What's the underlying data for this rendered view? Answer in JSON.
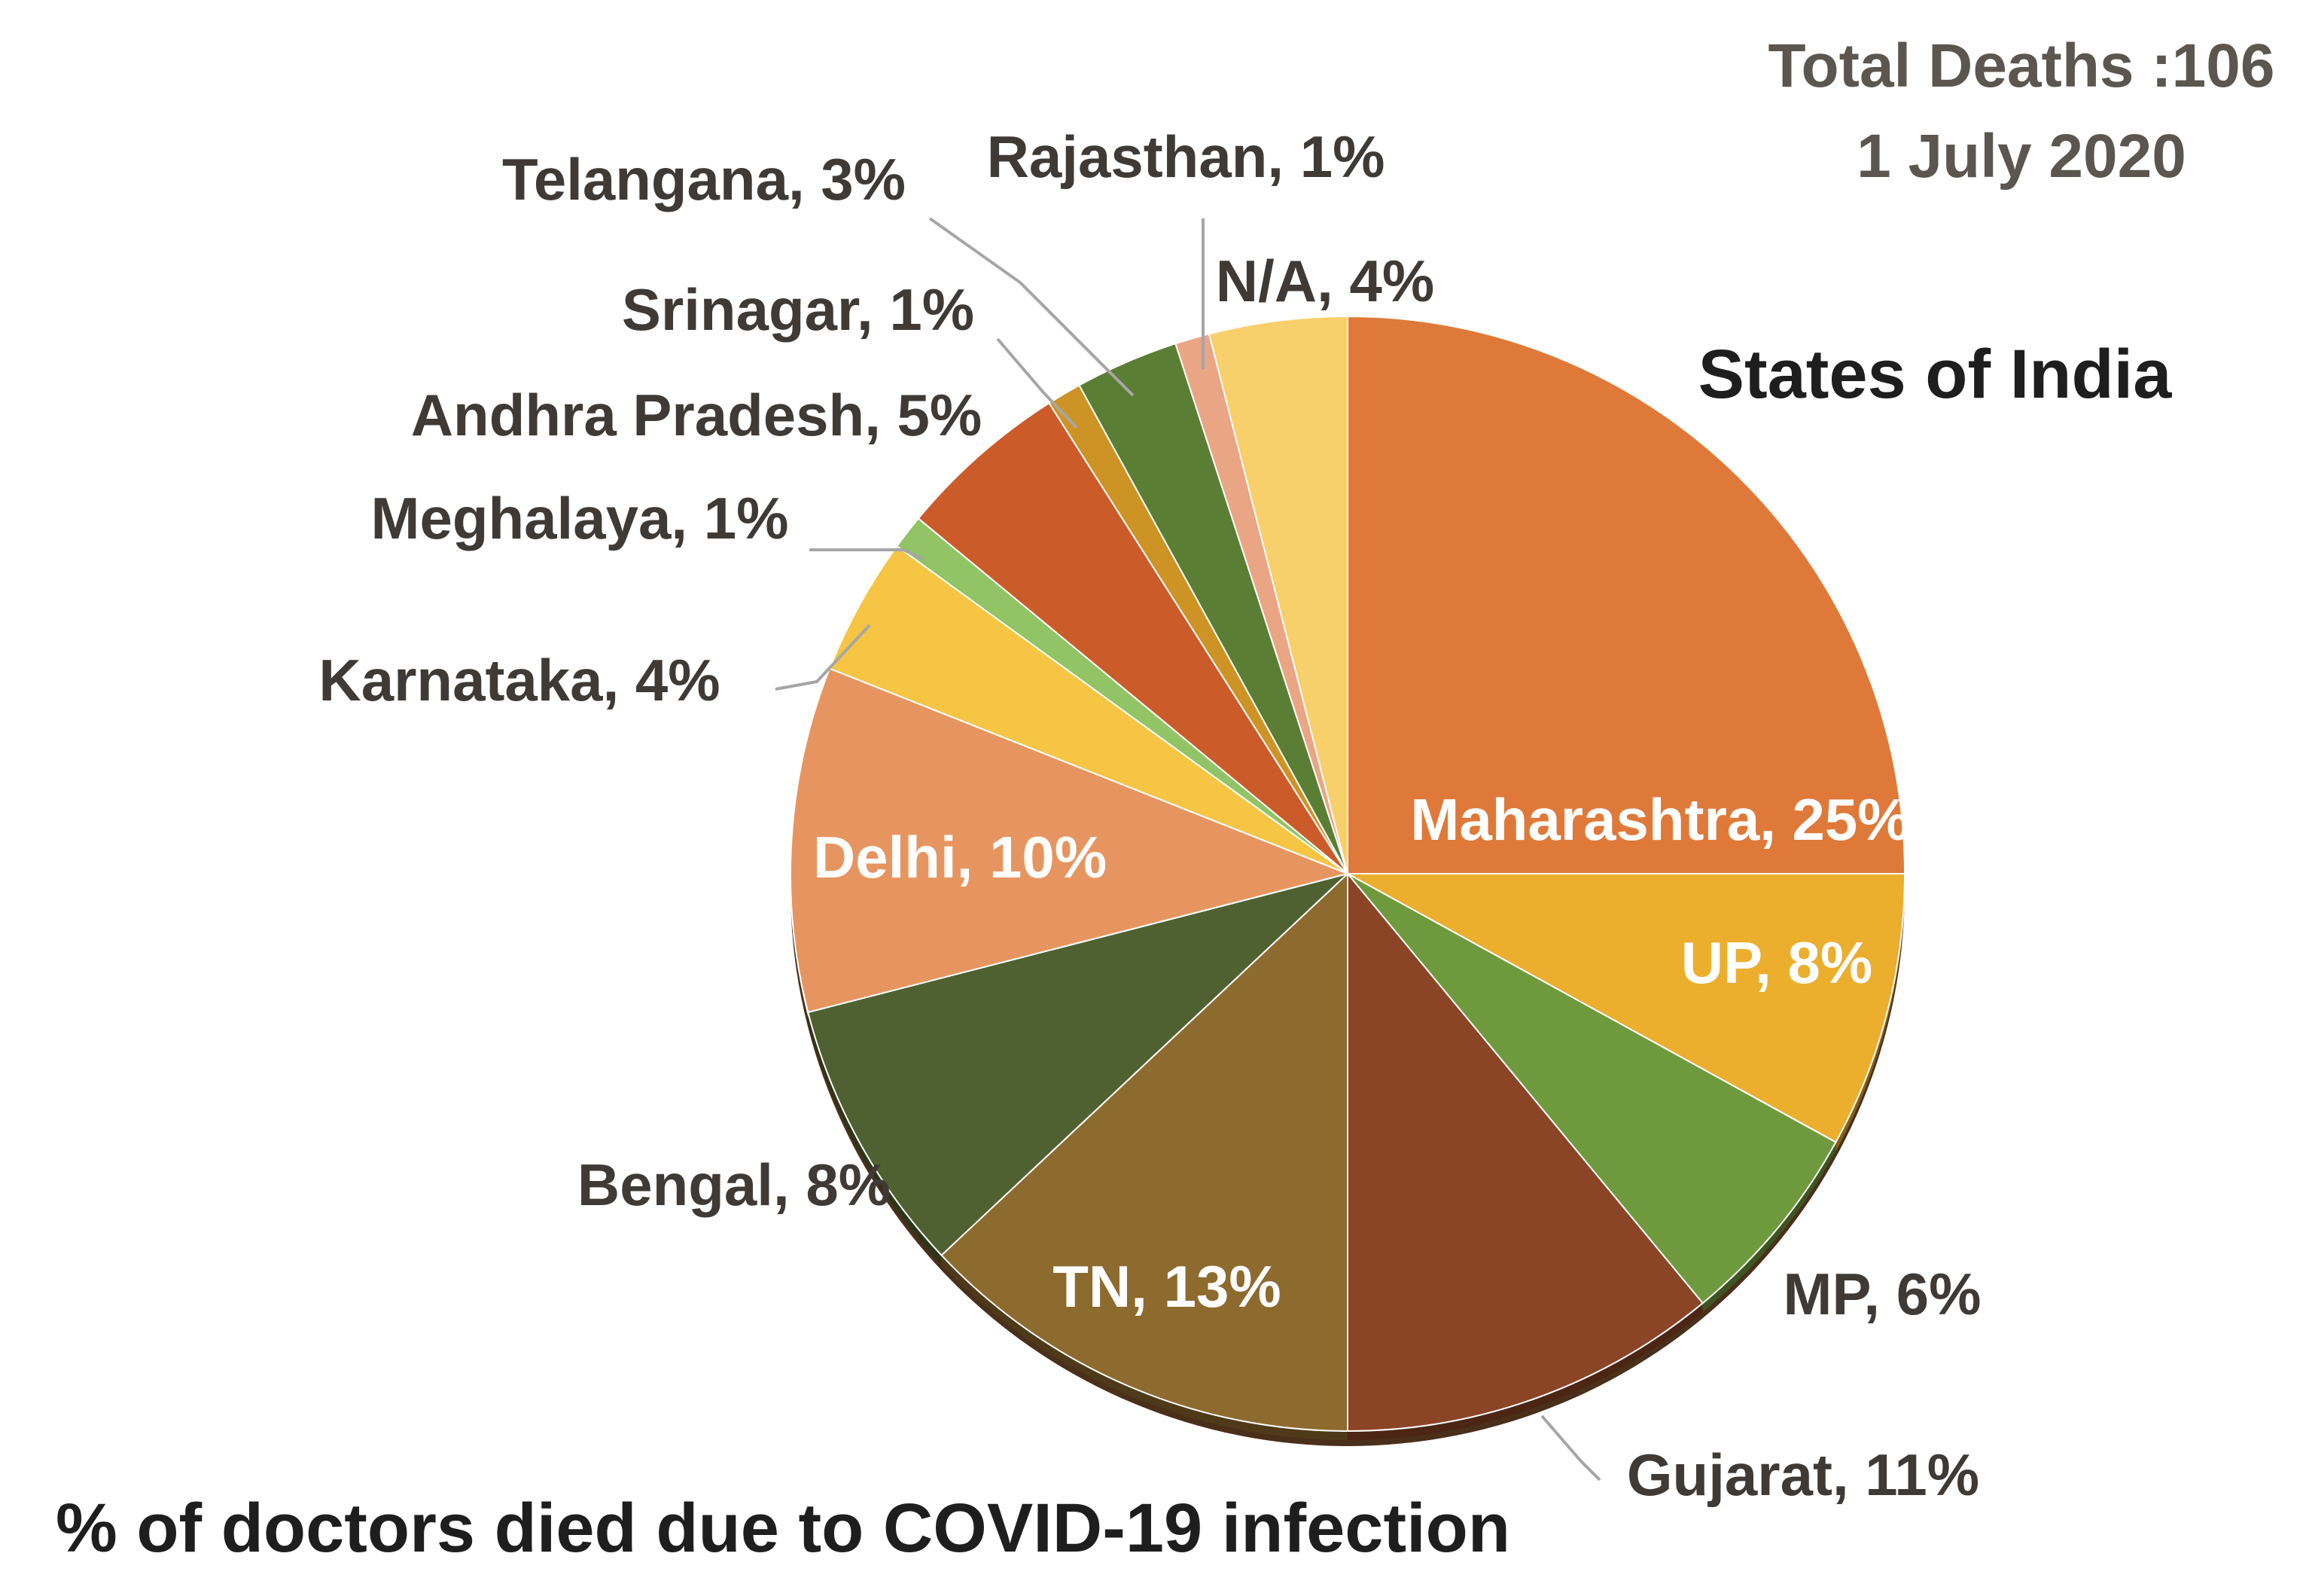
{
  "chart_data": {
    "type": "pie",
    "title": "States of India",
    "subtitle": "% of doctors died due to COVID-19 infection",
    "annotations": [
      "Total Deaths :106",
      "1 July 2020"
    ],
    "slices": [
      {
        "label": "Maharashtra, 25%",
        "name": "Maharashtra",
        "value": 25,
        "color": "#df7939",
        "inside": true
      },
      {
        "label": "UP, 8%",
        "name": "UP",
        "value": 8,
        "color": "#ebae2d",
        "inside": true
      },
      {
        "label": "MP, 6%",
        "name": "MP",
        "value": 6,
        "color": "#6e9a3d",
        "inside": false
      },
      {
        "label": "Gujarat, 11%",
        "name": "Gujarat",
        "value": 11,
        "color": "#8b4426",
        "inside": false
      },
      {
        "label": "TN, 13%",
        "name": "TN",
        "value": 13,
        "color": "#8d6a2e",
        "inside": true
      },
      {
        "label": "Bengal, 8%",
        "name": "Bengal",
        "value": 8,
        "color": "#4f6130",
        "inside": false
      },
      {
        "label": "Delhi, 10%",
        "name": "Delhi",
        "value": 10,
        "color": "#e79560",
        "inside": true
      },
      {
        "label": "Karnataka, 4%",
        "name": "Karnataka",
        "value": 4,
        "color": "#f6c543",
        "inside": false
      },
      {
        "label": "Meghalaya, 1%",
        "name": "Meghalaya",
        "value": 1,
        "color": "#90c465",
        "inside": false
      },
      {
        "label": "Andhra Pradesh, 5%",
        "name": "Andhra Pradesh",
        "value": 5,
        "color": "#cc5b2a",
        "inside": false
      },
      {
        "label": "Srinagar, 1%",
        "name": "Srinagar",
        "value": 1,
        "color": "#cd9425",
        "inside": false
      },
      {
        "label": "Telangana, 3%",
        "name": "Telangana",
        "value": 3,
        "color": "#5b7e35",
        "inside": false
      },
      {
        "label": "Rajasthan, 1%",
        "name": "Rajasthan",
        "value": 1,
        "color": "#eaa585",
        "inside": false
      },
      {
        "label": "N/A, 4%",
        "name": "N/A",
        "value": 4,
        "color": "#f7cf6b",
        "inside": false
      }
    ]
  }
}
